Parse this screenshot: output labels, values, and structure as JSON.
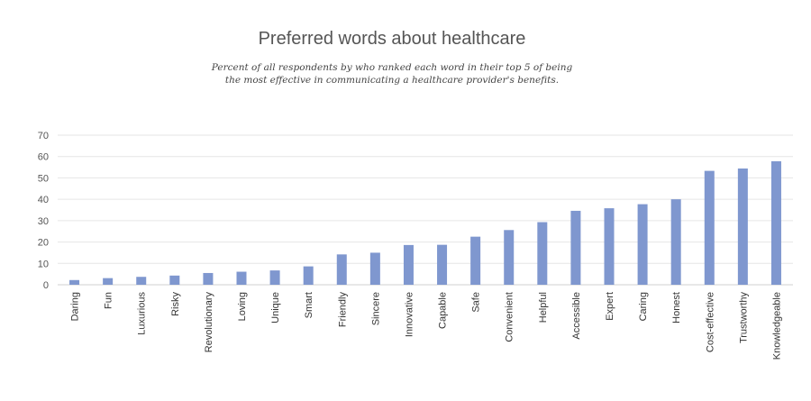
{
  "chart_data": {
    "type": "bar",
    "title": "Preferred words about healthcare",
    "subtitle_line1": "Percent of all respondents by who ranked each word in their top 5 of being",
    "subtitle_line2": "the most effective in communicating a healthcare provider's benefits.",
    "xlabel": "",
    "ylabel": "",
    "ylim": [
      0,
      70
    ],
    "yticks": [
      0,
      10,
      20,
      30,
      40,
      50,
      60,
      70
    ],
    "grid": true,
    "bar_color": "#7f97cf",
    "grid_color": "#e6e6e6",
    "categories": [
      "Daring",
      "Fun",
      "Luxurious",
      "Risky",
      "Revolutionary",
      "Loving",
      "Unique",
      "Smart",
      "Friendly",
      "Sincere",
      "Innovative",
      "Capable",
      "Safe",
      "Convenient",
      "Helpful",
      "Accessible",
      "Expert",
      "Caring",
      "Honest",
      "Cost-effective",
      "Trustworthy",
      "Knowledgeable"
    ],
    "values": [
      2.2,
      3.1,
      3.7,
      4.3,
      5.5,
      6.1,
      6.7,
      8.6,
      14.2,
      15.0,
      18.6,
      18.7,
      22.5,
      25.6,
      29.3,
      34.6,
      35.8,
      37.7,
      40.0,
      53.3,
      54.4,
      57.8
    ]
  }
}
